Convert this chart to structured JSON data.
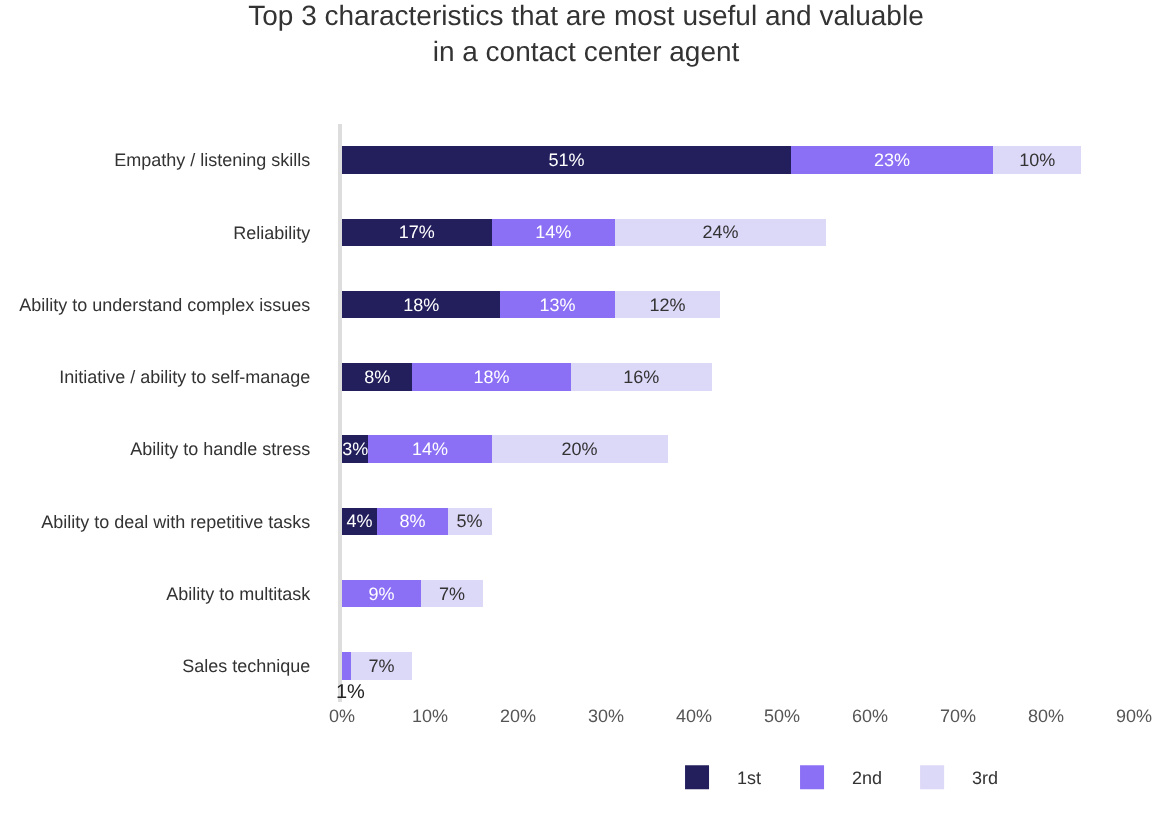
{
  "chart_data": {
    "type": "bar",
    "orientation": "horizontal",
    "stacked": true,
    "title": "Top 3 characteristics that are most useful and valuable\nin a contact center agent",
    "categories": [
      "Empathy / listening skills",
      "Reliability",
      "Ability to understand complex issues",
      "Initiative / ability to self-manage",
      "Ability to handle stress",
      "Ability to deal with repetitive tasks",
      "Ability to multitask",
      "Sales technique"
    ],
    "series": [
      {
        "name": "1st",
        "color": "#231f5c",
        "values": [
          51,
          17,
          18,
          8,
          3,
          4,
          0,
          0
        ],
        "value_labels": [
          "51%",
          "17%",
          "18%",
          "8%",
          "3%",
          "4%",
          null,
          null
        ]
      },
      {
        "name": "2nd",
        "color": "#8b6ff5",
        "values": [
          23,
          14,
          13,
          18,
          14,
          8,
          9,
          1
        ],
        "value_labels": [
          "23%",
          "14%",
          "13%",
          "18%",
          "14%",
          "8%",
          "9%",
          "1%"
        ]
      },
      {
        "name": "3rd",
        "color": "#dcd8f8",
        "values": [
          10,
          24,
          12,
          16,
          20,
          5,
          7,
          7
        ],
        "value_labels": [
          "10%",
          "24%",
          "12%",
          "16%",
          "20%",
          "5%",
          "7%",
          "7%"
        ]
      }
    ],
    "xlim": [
      0,
      90
    ],
    "xticks": [
      {
        "value": 0,
        "label": "0%"
      },
      {
        "value": 10,
        "label": "10%"
      },
      {
        "value": 20,
        "label": "20%"
      },
      {
        "value": 30,
        "label": "30%"
      },
      {
        "value": 40,
        "label": "40%"
      },
      {
        "value": 50,
        "label": "50%"
      },
      {
        "value": 60,
        "label": "60%"
      },
      {
        "value": 70,
        "label": "70%"
      },
      {
        "value": 80,
        "label": "80%"
      },
      {
        "value": 90,
        "label": "90%"
      }
    ],
    "legend": "bottom"
  }
}
